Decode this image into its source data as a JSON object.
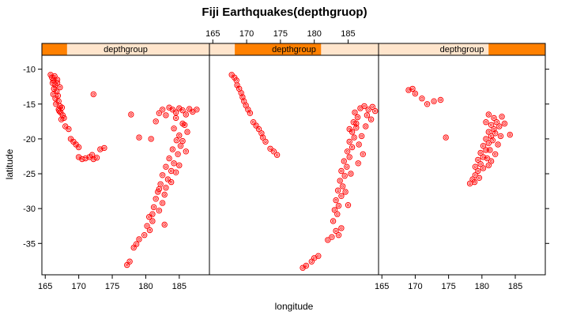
{
  "chart_data": {
    "type": "scatter",
    "title": "Fiji Earthquakes(depthgruop)",
    "xlabel": "longitude",
    "ylabel": "latitude",
    "xlim": [
      164.5,
      189.5
    ],
    "ylim": [
      -39.5,
      -8
    ],
    "x_ticks": [
      165,
      170,
      175,
      180,
      185
    ],
    "y_ticks": [
      -10,
      -15,
      -20,
      -25,
      -30,
      -35
    ],
    "point_color": "#ff0000",
    "strip_bg_color": "#ffe5cc",
    "strip_highlight_color": "#ff8000",
    "panels": [
      {
        "strip_label": "depthgroup",
        "strip_range": [
          0,
          0.15
        ],
        "points": [
          [
            165.8,
            -10.8
          ],
          [
            166.0,
            -11.2
          ],
          [
            166.2,
            -11.6
          ],
          [
            166.4,
            -11.0
          ],
          [
            166.1,
            -12.0
          ],
          [
            166.5,
            -12.3
          ],
          [
            166.8,
            -12.0
          ],
          [
            166.3,
            -12.8
          ],
          [
            166.7,
            -13.2
          ],
          [
            166.2,
            -13.6
          ],
          [
            166.9,
            -13.8
          ],
          [
            166.5,
            -14.2
          ],
          [
            167.0,
            -14.6
          ],
          [
            166.6,
            -15.0
          ],
          [
            167.2,
            -15.3
          ],
          [
            167.0,
            -15.8
          ],
          [
            167.5,
            -15.5
          ],
          [
            167.3,
            -16.2
          ],
          [
            167.6,
            -16.6
          ],
          [
            167.1,
            -16.0
          ],
          [
            167.8,
            -17.0
          ],
          [
            167.4,
            -17.2
          ],
          [
            166.8,
            -11.5
          ],
          [
            167.2,
            -12.6
          ],
          [
            168.0,
            -18.2
          ],
          [
            168.5,
            -18.6
          ],
          [
            168.8,
            -20.0
          ],
          [
            169.2,
            -20.4
          ],
          [
            169.6,
            -20.8
          ],
          [
            170.0,
            -21.2
          ],
          [
            170.0,
            -22.6
          ],
          [
            170.5,
            -22.9
          ],
          [
            171.0,
            -22.8
          ],
          [
            171.6,
            -22.6
          ],
          [
            172.0,
            -22.3
          ],
          [
            172.2,
            -22.9
          ],
          [
            172.7,
            -22.7
          ],
          [
            173.2,
            -21.5
          ],
          [
            173.8,
            -21.3
          ],
          [
            172.2,
            -13.6
          ],
          [
            177.8,
            -16.5
          ],
          [
            179.0,
            -19.8
          ],
          [
            180.8,
            -20.0
          ],
          [
            181.5,
            -17.5
          ],
          [
            182.0,
            -16.3
          ],
          [
            182.5,
            -15.8
          ],
          [
            183.0,
            -16.6
          ],
          [
            183.5,
            -15.5
          ],
          [
            184.0,
            -15.8
          ],
          [
            184.5,
            -16.2
          ],
          [
            185.0,
            -15.6
          ],
          [
            185.5,
            -15.9
          ],
          [
            186.0,
            -16.5
          ],
          [
            186.5,
            -15.7
          ],
          [
            187.0,
            -16.1
          ],
          [
            187.6,
            -15.8
          ],
          [
            184.5,
            -17.0
          ],
          [
            185.5,
            -17.8
          ],
          [
            184.2,
            -18.5
          ],
          [
            185.0,
            -19.5
          ],
          [
            184.6,
            -20.2
          ],
          [
            185.2,
            -21.0
          ],
          [
            184.0,
            -21.5
          ],
          [
            184.8,
            -22.2
          ],
          [
            183.5,
            -22.8
          ],
          [
            184.2,
            -23.5
          ],
          [
            183.0,
            -24.0
          ],
          [
            183.8,
            -24.6
          ],
          [
            182.5,
            -25.2
          ],
          [
            183.3,
            -25.8
          ],
          [
            182.2,
            -26.5
          ],
          [
            183.0,
            -27.0
          ],
          [
            181.8,
            -27.6
          ],
          [
            182.8,
            -28.0
          ],
          [
            181.5,
            -28.6
          ],
          [
            182.5,
            -29.2
          ],
          [
            181.2,
            -29.8
          ],
          [
            182.0,
            -30.3
          ],
          [
            180.5,
            -31.2
          ],
          [
            181.0,
            -31.8
          ],
          [
            180.2,
            -32.5
          ],
          [
            180.6,
            -33.1
          ],
          [
            179.8,
            -33.8
          ],
          [
            179.0,
            -34.4
          ],
          [
            178.6,
            -35.1
          ],
          [
            178.2,
            -35.6
          ],
          [
            177.6,
            -37.6
          ],
          [
            177.2,
            -38.1
          ],
          [
            185.8,
            -18.0
          ],
          [
            186.2,
            -19.0
          ],
          [
            185.5,
            -20.3
          ],
          [
            186.0,
            -21.8
          ],
          [
            185.0,
            -23.8
          ],
          [
            184.5,
            -24.8
          ],
          [
            183.8,
            -26.2
          ],
          [
            182.0,
            -27.2
          ],
          [
            181.0,
            -30.8
          ],
          [
            182.8,
            -32.3
          ]
        ]
      },
      {
        "strip_label": "depthgroup",
        "strip_range": [
          0.15,
          0.66
        ],
        "points": [
          [
            167.8,
            -10.8
          ],
          [
            168.2,
            -11.2
          ],
          [
            168.5,
            -11.6
          ],
          [
            168.6,
            -12.3
          ],
          [
            168.9,
            -12.8
          ],
          [
            169.2,
            -13.4
          ],
          [
            169.4,
            -14.0
          ],
          [
            169.6,
            -14.6
          ],
          [
            169.9,
            -15.2
          ],
          [
            170.2,
            -15.8
          ],
          [
            170.5,
            -16.3
          ],
          [
            171.0,
            -17.6
          ],
          [
            171.4,
            -18.1
          ],
          [
            171.8,
            -18.6
          ],
          [
            172.2,
            -19.2
          ],
          [
            172.4,
            -19.8
          ],
          [
            172.8,
            -20.4
          ],
          [
            173.5,
            -21.4
          ],
          [
            174.0,
            -21.8
          ],
          [
            174.5,
            -22.3
          ],
          [
            178.3,
            -38.5
          ],
          [
            178.8,
            -38.2
          ],
          [
            179.6,
            -37.6
          ],
          [
            180.0,
            -37.1
          ],
          [
            180.6,
            -36.8
          ],
          [
            182.0,
            -34.5
          ],
          [
            182.6,
            -34.1
          ],
          [
            183.2,
            -33.2
          ],
          [
            183.6,
            -33.8
          ],
          [
            184.0,
            -32.8
          ],
          [
            182.8,
            -31.8
          ],
          [
            183.4,
            -30.8
          ],
          [
            183.0,
            -30.2
          ],
          [
            183.6,
            -29.6
          ],
          [
            183.2,
            -28.8
          ],
          [
            184.0,
            -28.2
          ],
          [
            183.5,
            -27.4
          ],
          [
            184.2,
            -26.8
          ],
          [
            183.8,
            -26.0
          ],
          [
            184.5,
            -25.3
          ],
          [
            184.0,
            -24.6
          ],
          [
            184.8,
            -24.0
          ],
          [
            184.4,
            -23.2
          ],
          [
            185.2,
            -22.6
          ],
          [
            184.9,
            -21.8
          ],
          [
            185.6,
            -21.2
          ],
          [
            185.2,
            -20.4
          ],
          [
            185.9,
            -19.8
          ],
          [
            185.6,
            -19.0
          ],
          [
            186.2,
            -18.4
          ],
          [
            185.8,
            -17.6
          ],
          [
            186.4,
            -16.9
          ],
          [
            186.0,
            -16.2
          ],
          [
            186.8,
            -15.6
          ],
          [
            187.4,
            -15.3
          ],
          [
            188.0,
            -15.8
          ],
          [
            188.6,
            -15.4
          ],
          [
            189.0,
            -16.0
          ],
          [
            188.4,
            -17.2
          ],
          [
            187.6,
            -18.2
          ],
          [
            187.0,
            -19.6
          ],
          [
            186.6,
            -20.8
          ],
          [
            187.2,
            -22.2
          ],
          [
            186.5,
            -23.5
          ],
          [
            185.4,
            -25.0
          ],
          [
            184.6,
            -27.6
          ],
          [
            185.0,
            -29.5
          ],
          [
            186.2,
            -17.8
          ],
          [
            187.8,
            -16.6
          ],
          [
            185.2,
            -18.6
          ]
        ]
      },
      {
        "strip_label": "depthgroup",
        "strip_range": [
          0.66,
          1
        ],
        "points": [
          [
            169.0,
            -13.0
          ],
          [
            169.6,
            -12.8
          ],
          [
            170.0,
            -13.5
          ],
          [
            171.0,
            -14.2
          ],
          [
            171.8,
            -15.0
          ],
          [
            172.8,
            -14.6
          ],
          [
            173.8,
            -14.4
          ],
          [
            174.6,
            -19.8
          ],
          [
            178.2,
            -26.4
          ],
          [
            178.6,
            -25.8
          ],
          [
            178.9,
            -26.2
          ],
          [
            179.0,
            -25.2
          ],
          [
            179.4,
            -24.6
          ],
          [
            179.0,
            -24.0
          ],
          [
            179.8,
            -23.6
          ],
          [
            179.4,
            -23.0
          ],
          [
            180.2,
            -22.6
          ],
          [
            179.8,
            -22.0
          ],
          [
            180.6,
            -21.6
          ],
          [
            180.2,
            -21.0
          ],
          [
            181.0,
            -20.6
          ],
          [
            180.6,
            -20.0
          ],
          [
            181.4,
            -19.6
          ],
          [
            181.0,
            -19.0
          ],
          [
            181.8,
            -18.6
          ],
          [
            181.4,
            -18.0
          ],
          [
            182.2,
            -17.6
          ],
          [
            181.8,
            -17.0
          ],
          [
            181.0,
            -16.5
          ],
          [
            180.6,
            -17.6
          ],
          [
            182.6,
            -18.2
          ],
          [
            182.0,
            -19.2
          ],
          [
            181.6,
            -20.2
          ],
          [
            182.4,
            -20.8
          ],
          [
            181.2,
            -21.6
          ],
          [
            182.0,
            -22.2
          ],
          [
            180.8,
            -22.8
          ],
          [
            181.4,
            -23.2
          ],
          [
            180.2,
            -24.2
          ],
          [
            179.6,
            -25.6
          ],
          [
            183.0,
            -16.8
          ],
          [
            183.4,
            -17.8
          ],
          [
            182.8,
            -19.6
          ],
          [
            181.0,
            -23.8
          ],
          [
            184.2,
            -19.4
          ]
        ]
      }
    ]
  }
}
